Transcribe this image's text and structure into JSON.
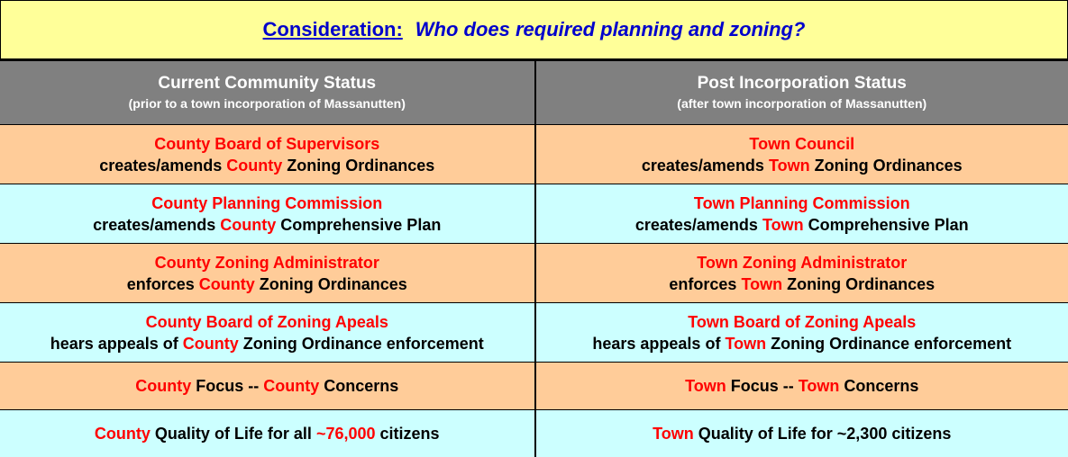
{
  "title": {
    "label": "Consideration:",
    "question": "Who does required planning and zoning?"
  },
  "header": {
    "left": {
      "title": "Current Community Status",
      "subtitle": "(prior to a town incorporation of Massanutten)"
    },
    "right": {
      "title": "Post Incorporation Status",
      "subtitle": "(after town incorporation of Massanutten)"
    }
  },
  "rows": [
    {
      "left": {
        "line1": "County Board of Supervisors",
        "line2_pre": "creates/amends ",
        "line2_hl": "County",
        "line2_post": " Zoning Ordinances"
      },
      "right": {
        "line1": "Town Council",
        "line2_pre": "creates/amends ",
        "line2_hl": "Town",
        "line2_post": " Zoning Ordinances"
      }
    },
    {
      "left": {
        "line1": "County Planning Commission",
        "line2_pre": "creates/amends ",
        "line2_hl": "County",
        "line2_post": " Comprehensive Plan"
      },
      "right": {
        "line1": "Town Planning Commission",
        "line2_pre": "creates/amends ",
        "line2_hl": "Town",
        "line2_post": " Comprehensive Plan"
      }
    },
    {
      "left": {
        "line1": "County Zoning Administrator",
        "line2_pre": "enforces ",
        "line2_hl": "County",
        "line2_post": " Zoning Ordinances"
      },
      "right": {
        "line1": "Town Zoning Administrator",
        "line2_pre": "enforces ",
        "line2_hl": "Town",
        "line2_post": " Zoning Ordinances"
      }
    },
    {
      "left": {
        "line1": "County Board of Zoning Apeals",
        "line2_pre": "hears appeals of ",
        "line2_hl": "County",
        "line2_post": " Zoning Ordinance enforcement"
      },
      "right": {
        "line1": "Town Board of Zoning Apeals",
        "line2_pre": "hears appeals of ",
        "line2_hl": "Town",
        "line2_post": " Zoning Ordinance enforcement"
      }
    }
  ],
  "focus": {
    "left": {
      "a": "County",
      "b": " Focus -- ",
      "c": "County",
      "d": " Concerns"
    },
    "right": {
      "a": "Town",
      "b": " Focus -- ",
      "c": "Town",
      "d": " Concerns"
    }
  },
  "quality": {
    "left": {
      "a": "County",
      "b": " Quality of Life for all ",
      "c": "~76,000",
      "d": " citizens"
    },
    "right": {
      "a": "Town",
      "b": " Quality of Life for ~2,300 citizens"
    }
  },
  "colors": {
    "title_bg": "#ffff99",
    "title_text": "#0000cc",
    "header_bg": "#808080",
    "peach": "#ffcc99",
    "cyan": "#ccffff",
    "highlight": "#ff0000"
  }
}
